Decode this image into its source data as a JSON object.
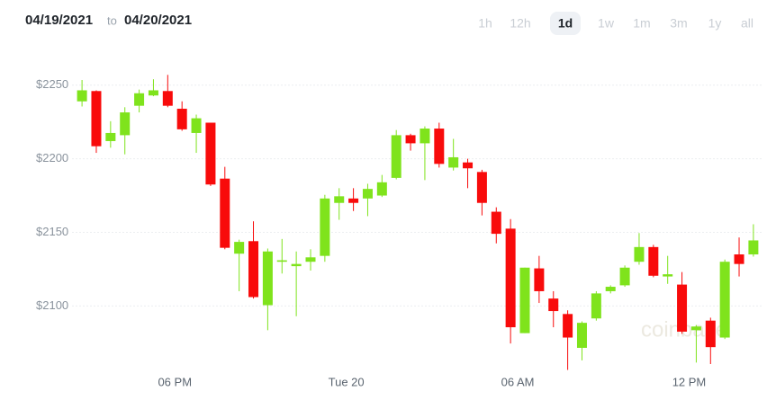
{
  "header": {
    "start_date": "04/19/2021",
    "separator": "to",
    "end_date": "04/20/2021"
  },
  "range_buttons": [
    "1h",
    "12h",
    "1d",
    "1w",
    "1m",
    "3m",
    "1y",
    "all"
  ],
  "selected_range": "1d",
  "watermark": "coinbase",
  "chart_data": {
    "type": "candlestick",
    "x": [
      14.75,
      15.25,
      15.75,
      16.25,
      16.75,
      17.25,
      17.75,
      18.25,
      18.75,
      19.25,
      19.75,
      20.25,
      20.75,
      21.25,
      21.75,
      22.25,
      22.75,
      23.25,
      23.75,
      24.25,
      24.75,
      25.25,
      25.75,
      26.25,
      26.75,
      27.25,
      27.75,
      28.25,
      28.75,
      29.25,
      29.75,
      30.25,
      30.75,
      31.25,
      31.75,
      32.25,
      32.75,
      33.25,
      33.75,
      34.25,
      34.75,
      35.25,
      35.75,
      36.25,
      36.75,
      37.25,
      37.75,
      38.25
    ],
    "open": [
      2239,
      2246,
      2212,
      2216,
      2236,
      2243,
      2246,
      2234,
      2217.5,
      2224.5,
      2186.5,
      2135.5,
      2144,
      2100.5,
      2130,
      2127,
      2130,
      2134,
      2170,
      2173,
      2173,
      2175,
      2187,
      2216,
      2210.5,
      2220.5,
      2194,
      2197.5,
      2191,
      2164,
      2152.5,
      2081.5,
      2125.5,
      2105,
      2094.5,
      2071.5,
      2091.5,
      2110,
      2114,
      2130,
      2140,
      2120,
      2114.5,
      2083.5,
      2090,
      2078.5,
      2135,
      2135
    ],
    "high": [
      2253.5,
      2246.5,
      2225.5,
      2235,
      2247,
      2254,
      2257,
      2239,
      2230,
      2224.5,
      2194.5,
      2145,
      2157.5,
      2139,
      2145.5,
      2137,
      2138.5,
      2175.5,
      2180,
      2180,
      2183,
      2189,
      2219.5,
      2217,
      2222,
      2224.5,
      2213.5,
      2200,
      2192.5,
      2167,
      2159,
      2126,
      2134,
      2110,
      2097,
      2089.5,
      2110,
      2114,
      2127.5,
      2149.5,
      2141.5,
      2134,
      2123,
      2087,
      2092,
      2131.5,
      2146.5,
      2155.5
    ],
    "low": [
      2235.5,
      2204,
      2207.5,
      2203,
      2231.5,
      2242.5,
      2235,
      2219,
      2204,
      2181.5,
      2138.5,
      2110,
      2105,
      2083.5,
      2122,
      2093,
      2124,
      2130,
      2158.5,
      2164.5,
      2161,
      2174,
      2186,
      2205.5,
      2185.5,
      2194,
      2192,
      2180,
      2161.5,
      2142.5,
      2074.5,
      2081.5,
      2102,
      2085.5,
      2056.5,
      2063,
      2090,
      2108.5,
      2113,
      2128,
      2119.5,
      2115,
      2081,
      2061.5,
      2060.5,
      2077.5,
      2120,
      2133.5
    ],
    "close": [
      2246.5,
      2208.5,
      2217.5,
      2231.5,
      2244.5,
      2246.5,
      2236,
      2220,
      2227.5,
      2182.5,
      2139.5,
      2143.5,
      2106,
      2137,
      2131,
      2128.5,
      2133,
      2173,
      2174.5,
      2170,
      2179.5,
      2184,
      2216,
      2210.5,
      2220.5,
      2196.5,
      2201,
      2193.5,
      2170,
      2149,
      2085.5,
      2126,
      2110,
      2096.5,
      2078.5,
      2088.5,
      2108.5,
      2113,
      2126,
      2140,
      2120.5,
      2121.5,
      2082.5,
      2086,
      2072,
      2130,
      2128.5,
      2144.5
    ],
    "up_color": "#7fe31c",
    "down_color": "#f80b0b",
    "xlim": [
      14.4,
      38.6
    ],
    "xticks": [
      {
        "value": 18,
        "label": "06 PM"
      },
      {
        "value": 24,
        "label": "Tue 20"
      },
      {
        "value": 30,
        "label": "06 AM"
      },
      {
        "value": 36,
        "label": "12 PM"
      }
    ],
    "ylim": [
      2055,
      2270
    ],
    "yticks": [
      {
        "value": 2100,
        "label": "$2100"
      },
      {
        "value": 2150,
        "label": "$2150"
      },
      {
        "value": 2200,
        "label": "$2200"
      },
      {
        "value": 2250,
        "label": "$2250"
      }
    ],
    "grid": true
  }
}
